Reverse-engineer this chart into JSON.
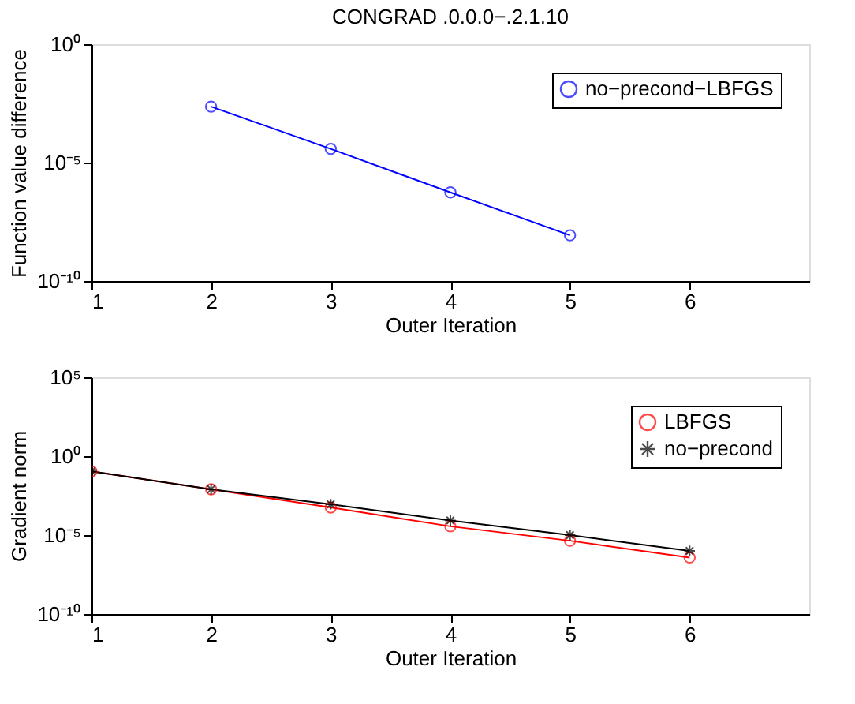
{
  "chart_data": [
    {
      "type": "line",
      "title": "CONGRAD .0.0.0−.2.1.10",
      "xlabel": "Outer Iteration",
      "ylabel": "Function value difference",
      "log": "y",
      "grid": false,
      "legend": "top right",
      "xlim": [
        1,
        7
      ],
      "xticks": [
        1,
        2,
        3,
        4,
        5,
        6
      ],
      "ylim": [
        1e-10,
        1
      ],
      "yticks": [
        {
          "value": 1e-10,
          "label": "10⁻¹⁰"
        },
        {
          "value": 1e-05,
          "label": "10⁻⁵"
        },
        {
          "value": 1,
          "label": "10⁰"
        }
      ],
      "series": [
        {
          "name": "no−precond−LBFGS",
          "color": "#0000ff",
          "marker": "circle",
          "x": [
            2,
            3,
            4,
            5
          ],
          "values": [
            0.0023,
            3.8e-05,
            5.5e-07,
            8.5e-09
          ]
        }
      ]
    },
    {
      "type": "line",
      "xlabel": "Outer Iteration",
      "ylabel": "Gradient norm",
      "log": "y",
      "grid": false,
      "legend": "top right",
      "xlim": [
        1,
        7
      ],
      "xticks": [
        1,
        2,
        3,
        4,
        5,
        6
      ],
      "ylim": [
        1e-10,
        100000.0
      ],
      "yticks": [
        {
          "value": 1e-10,
          "label": "10⁻¹⁰"
        },
        {
          "value": 1e-05,
          "label": "10⁻⁵"
        },
        {
          "value": 1,
          "label": "10⁰"
        },
        {
          "value": 100000.0,
          "label": "10⁵"
        }
      ],
      "series": [
        {
          "name": "LBFGS",
          "color": "#ff0000",
          "marker": "circle",
          "x": [
            1,
            2,
            3,
            4,
            5,
            6
          ],
          "values": [
            0.11,
            0.008,
            0.00056,
            3.6e-05,
            4.4e-06,
            3.8e-07
          ]
        },
        {
          "name": "no−precond",
          "color": "#000000",
          "marker": "cross",
          "x": [
            1,
            2,
            3,
            4,
            5,
            6
          ],
          "values": [
            0.11,
            0.008,
            0.0009,
            8.5e-05,
            1e-05,
            1e-06
          ]
        }
      ]
    }
  ]
}
